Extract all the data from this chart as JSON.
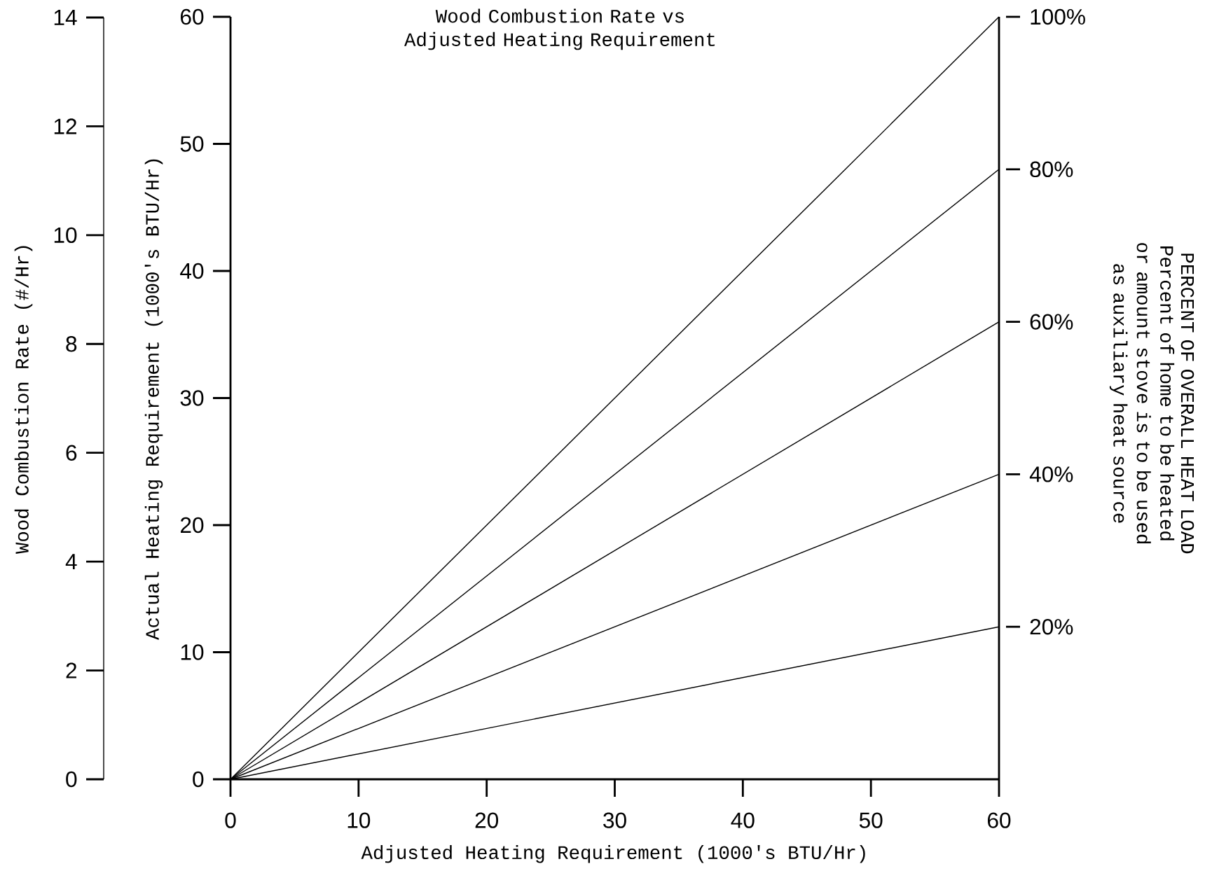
{
  "chart_data": {
    "type": "line",
    "title": "Wood Combustion Rate vs Adjusted Heating Requirement",
    "xlabel": "Adjusted Heating Requirement (1000's BTU/Hr)",
    "ylabel": "Actual Heating Requirement (1000's BTU/Hr)",
    "y2label": "Wood Combustion Rate (#/Hr)",
    "x": [
      0,
      60
    ],
    "xlim": [
      0,
      60
    ],
    "xticks": [
      0,
      10,
      20,
      30,
      40,
      50,
      60
    ],
    "ylim": [
      0,
      60
    ],
    "yticks": [
      0,
      10,
      20,
      30,
      40,
      50,
      60
    ],
    "y2lim": [
      0,
      14
    ],
    "y2ticks": [
      0,
      2,
      4,
      6,
      8,
      10,
      12,
      14
    ],
    "series": [
      {
        "name": "100%",
        "color": "#000000",
        "values": [
          0,
          60
        ]
      },
      {
        "name": "80%",
        "color": "#000000",
        "values": [
          0,
          48
        ]
      },
      {
        "name": "60%",
        "color": "#000000",
        "values": [
          0,
          36
        ]
      },
      {
        "name": "40%",
        "color": "#000000",
        "values": [
          0,
          24
        ]
      },
      {
        "name": "20%",
        "color": "#000000",
        "values": [
          0,
          12
        ]
      }
    ],
    "annotations": [
      "PERCENT OF OVERALL HEAT LOAD",
      "Percent of home to be heated or amount stove is to be used as auxiliary heat source"
    ],
    "legend": "right"
  }
}
